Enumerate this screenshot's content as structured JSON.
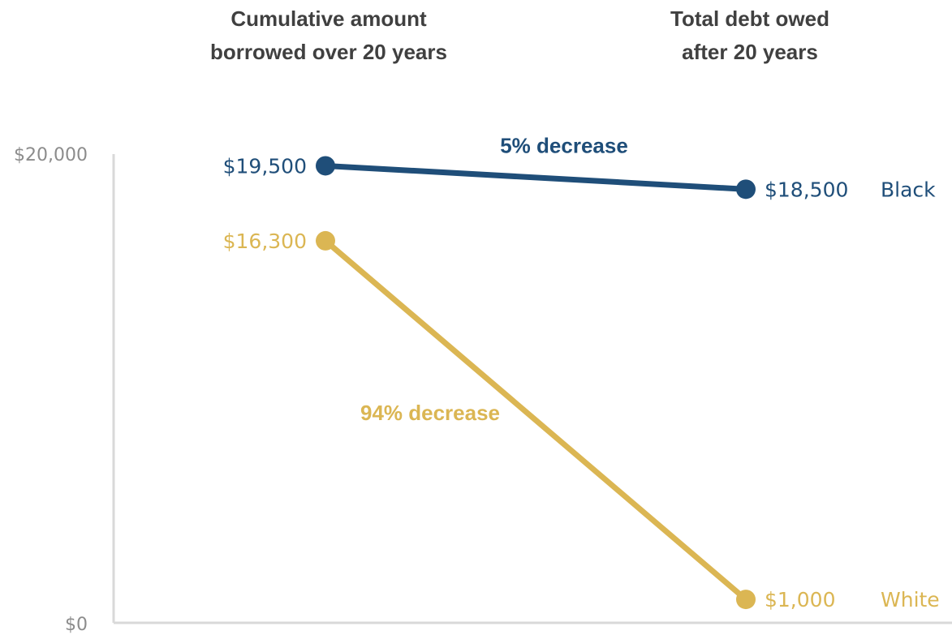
{
  "chart_data": {
    "type": "line",
    "categories": [
      "Cumulative amount borrowed over 20 years",
      "Total debt owed after 20 years"
    ],
    "category_lines": [
      [
        "Cumulative amount",
        "borrowed  over 20 years"
      ],
      [
        "Total debt owed",
        "after 20 years"
      ]
    ],
    "ylim": [
      0,
      20000
    ],
    "y_ticks": [
      {
        "value": 0,
        "label": "$0"
      },
      {
        "value": 20000,
        "label": "$20,000"
      }
    ],
    "grid": false,
    "series": [
      {
        "name": "Black",
        "color": "#1f4e79",
        "values": [
          19500,
          18500
        ],
        "value_labels": [
          "$19,500",
          "$18,500"
        ],
        "annotation": "5% decrease"
      },
      {
        "name": "White",
        "color": "#dbb653",
        "values": [
          16300,
          1000
        ],
        "value_labels": [
          "$16,300",
          "$1,000"
        ],
        "annotation": "94% decrease"
      }
    ]
  }
}
